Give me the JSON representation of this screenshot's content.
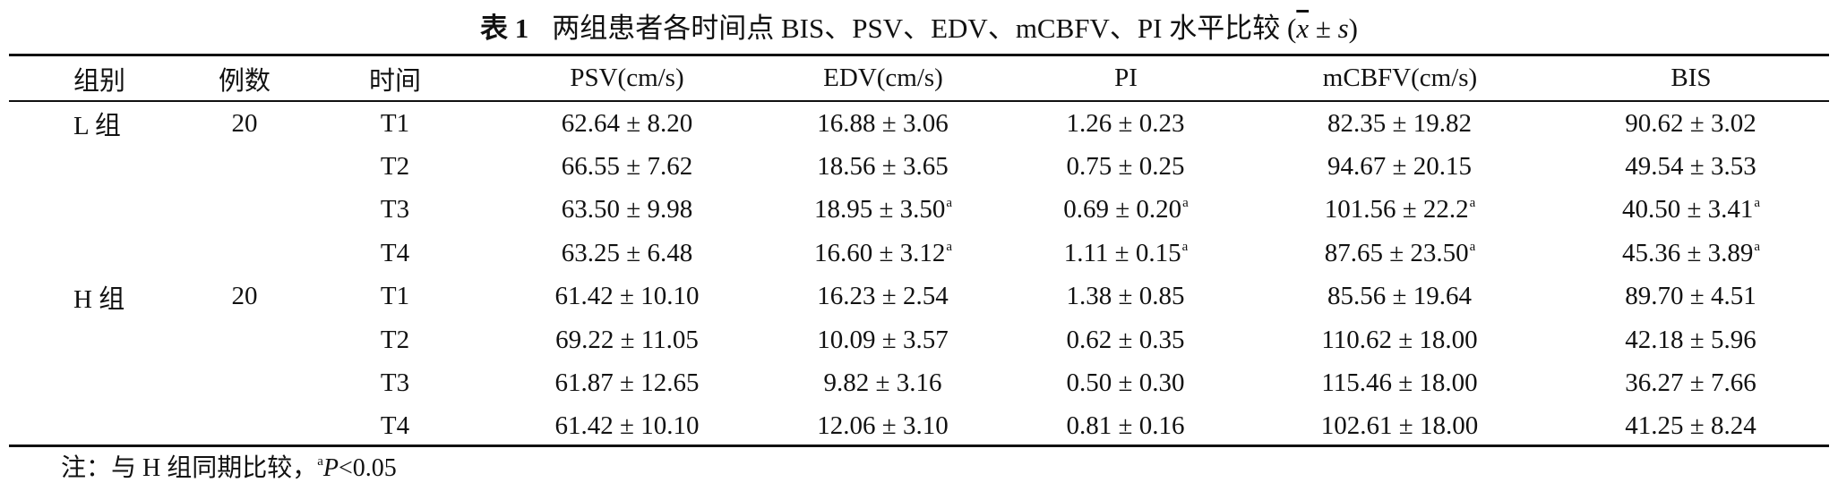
{
  "caption": {
    "number": "表 1",
    "text": "两组患者各时间点 BIS、PSV、EDV、mCBFV、PI 水平比较 (",
    "mean_symbol": "x",
    "pm": " ± ",
    "sd_symbol": "s",
    "close": ")"
  },
  "headers": [
    "组别",
    "例数",
    "时间",
    "PSV(cm/s)",
    "EDV(cm/s)",
    "PI",
    "mCBFV(cm/s)",
    "BIS"
  ],
  "groups": [
    {
      "name": "L 组",
      "n": "20",
      "rows": [
        {
          "time": "T1",
          "psv": "62.64 ± 8.20",
          "edv": "16.88 ± 3.06",
          "edv_mark": "",
          "pi": "1.26 ± 0.23",
          "pi_mark": "",
          "mcbfv": "82.35 ± 19.82",
          "mcbfv_mark": "",
          "bis": "90.62 ± 3.02",
          "bis_mark": ""
        },
        {
          "time": "T2",
          "psv": "66.55 ± 7.62",
          "edv": "18.56 ± 3.65",
          "edv_mark": "",
          "pi": "0.75 ± 0.25",
          "pi_mark": "",
          "mcbfv": "94.67 ± 20.15",
          "mcbfv_mark": "",
          "bis": "49.54 ± 3.53",
          "bis_mark": ""
        },
        {
          "time": "T3",
          "psv": "63.50 ± 9.98",
          "edv": "18.95 ± 3.50",
          "edv_mark": "a",
          "pi": "0.69 ± 0.20",
          "pi_mark": "a",
          "mcbfv": "101.56 ± 22.2",
          "mcbfv_mark": "a",
          "bis": "40.50 ± 3.41",
          "bis_mark": "a"
        },
        {
          "time": "T4",
          "psv": "63.25 ± 6.48",
          "edv": "16.60 ± 3.12",
          "edv_mark": "a",
          "pi": "1.11 ± 0.15",
          "pi_mark": "a",
          "mcbfv": "87.65 ± 23.50",
          "mcbfv_mark": "a",
          "bis": "45.36 ± 3.89",
          "bis_mark": "a"
        }
      ]
    },
    {
      "name": "H 组",
      "n": "20",
      "rows": [
        {
          "time": "T1",
          "psv": "61.42 ± 10.10",
          "edv": "16.23 ± 2.54",
          "edv_mark": "",
          "pi": "1.38 ± 0.85",
          "pi_mark": "",
          "mcbfv": "85.56 ± 19.64",
          "mcbfv_mark": "",
          "bis": "89.70 ± 4.51",
          "bis_mark": ""
        },
        {
          "time": "T2",
          "psv": "69.22 ± 11.05",
          "edv": "10.09 ± 3.57",
          "edv_mark": "",
          "pi": "0.62 ± 0.35",
          "pi_mark": "",
          "mcbfv": "110.62 ± 18.00",
          "mcbfv_mark": "",
          "bis": "42.18 ± 5.96",
          "bis_mark": ""
        },
        {
          "time": "T3",
          "psv": "61.87 ± 12.65",
          "edv": "9.82 ± 3.16",
          "edv_mark": "",
          "pi": "0.50 ± 0.30",
          "pi_mark": "",
          "mcbfv": "115.46 ± 18.00",
          "mcbfv_mark": "",
          "bis": "36.27 ± 7.66",
          "bis_mark": ""
        },
        {
          "time": "T4",
          "psv": "61.42 ± 10.10",
          "edv": "12.06 ± 3.10",
          "edv_mark": "",
          "pi": "0.81 ± 0.16",
          "pi_mark": "",
          "mcbfv": "102.61 ± 18.00",
          "mcbfv_mark": "",
          "bis": "41.25 ± 8.24",
          "bis_mark": ""
        }
      ]
    }
  ],
  "note": {
    "prefix": "注：与 H 组同期比较，",
    "mark": "a",
    "p": "P",
    "rest": "<0.05"
  }
}
